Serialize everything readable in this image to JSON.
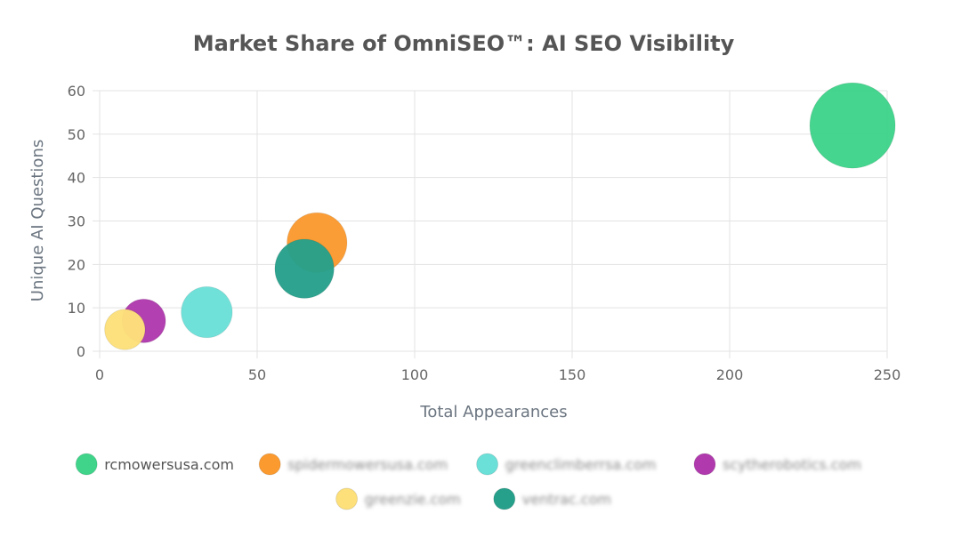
{
  "chart_data": {
    "type": "scatter",
    "title": "Market Share of OmniSEO™: AI SEO Visibility",
    "xlabel": "Total Appearances",
    "ylabel": "Unique AI Questions",
    "xlim": [
      0,
      250
    ],
    "ylim": [
      0,
      60
    ],
    "x_ticks": [
      0,
      50,
      100,
      150,
      200,
      250
    ],
    "y_ticks": [
      0,
      10,
      20,
      30,
      40,
      50,
      60
    ],
    "grid": true,
    "legend_position": "bottom",
    "series": [
      {
        "name": "rcmowersusa.com",
        "color": "#3fd48a",
        "x": 239,
        "y": 52,
        "size": 239,
        "label_blurred": false
      },
      {
        "name": "spidermowersusa.com",
        "color": "#fb9a2f",
        "x": 69,
        "y": 25,
        "size": 69,
        "label_blurred": true
      },
      {
        "name": "greenclimberrsa.com",
        "color": "#6be0d8",
        "x": 34,
        "y": 9,
        "size": 34,
        "label_blurred": true
      },
      {
        "name": "scytherobotics.com",
        "color": "#b03aad",
        "x": 14,
        "y": 7,
        "size": 14,
        "label_blurred": true
      },
      {
        "name": "greenzie.com",
        "color": "#fde07a",
        "x": 8,
        "y": 5,
        "size": 8,
        "label_blurred": true
      },
      {
        "name": "ventrac.com",
        "color": "#27a08b",
        "x": 65,
        "y": 19,
        "size": 65,
        "label_blurred": true
      }
    ]
  }
}
